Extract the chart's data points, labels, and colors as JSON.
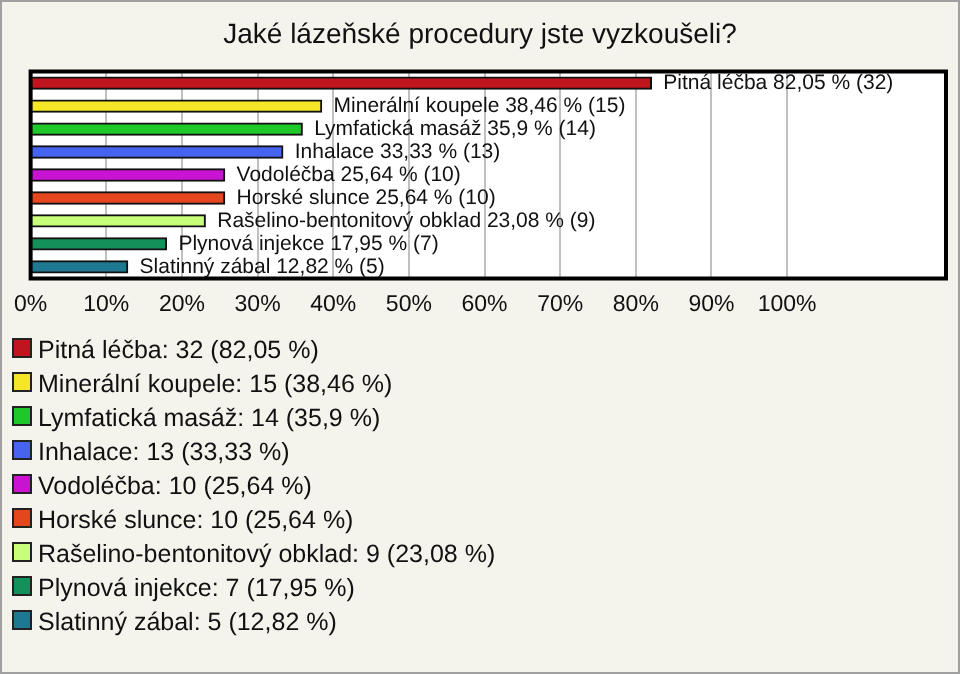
{
  "chart_data": {
    "type": "bar",
    "orientation": "horizontal",
    "title": "Jaké lázeňské procedury jste vyzkoušeli?",
    "categories": [
      "Pitná léčba",
      "Minerální koupele",
      "Lymfatická masáž",
      "Inhalace",
      "Vodoléčba",
      "Horské slunce",
      "Rašelino-bentonitový obklad",
      "Plynová injekce",
      "Slatinný zábal"
    ],
    "values": [
      82.05,
      38.46,
      35.9,
      33.33,
      25.64,
      25.64,
      23.08,
      17.95,
      12.82
    ],
    "colors": [
      "#c0141e",
      "#f5e628",
      "#1ec828",
      "#4664f0",
      "#c814d2",
      "#e6461e",
      "#c8ff78",
      "#14915a",
      "#1e7891"
    ],
    "value_labels": [
      "82,05 % (32)",
      "38,46 % (15)",
      "35,9 % (14)",
      "33,33 % (13)",
      "25,64 % (10)",
      "25,64 % (10)",
      "23,08 % (9)",
      "17,95 % (7)",
      "12,82 % (5)"
    ],
    "annotations": [
      "Pitná léčba: 32 (82,05 %)",
      "Minerální koupele: 15 (38,46 %)",
      "Lymfatická masáž: 14 (35,9 %)",
      "Inhalace: 13 (33,33 %)",
      "Vodoléčba: 10 (25,64 %)",
      "Horské slunce: 10 (25,64 %)",
      "Rašelino-bentonitový obklad: 9 (23,08 %)",
      "Plynová injekce: 7 (17,95 %)",
      "Slatinný zábal: 5 (12,82 %)"
    ],
    "xlim": [
      0,
      121
    ],
    "xticks": [
      {
        "value": 0,
        "label": "0%"
      },
      {
        "value": 10,
        "label": "10%"
      },
      {
        "value": 20,
        "label": "20%"
      },
      {
        "value": 30,
        "label": "30%"
      },
      {
        "value": 40,
        "label": "40%"
      },
      {
        "value": 50,
        "label": "50%"
      },
      {
        "value": 60,
        "label": "60%"
      },
      {
        "value": 70,
        "label": "70%"
      },
      {
        "value": 80,
        "label": "80%"
      },
      {
        "value": 90,
        "label": "90%"
      },
      {
        "value": 100,
        "label": "100%"
      }
    ],
    "grid": "x",
    "tick_labels": "x"
  }
}
